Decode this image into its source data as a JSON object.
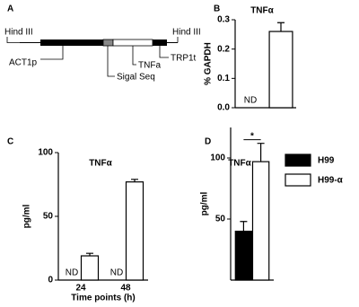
{
  "diagram": {
    "panel_label": "A",
    "labels": [
      "Hind III",
      "ACT1p",
      "Sigal Seq",
      "TNFa",
      "TRP1t",
      "Hind III"
    ]
  },
  "chart_data": [
    {
      "type": "bar",
      "panel_label": "B",
      "title": "TNFα",
      "y_label": "% GAPDH",
      "categories": [
        null,
        null
      ],
      "series": [
        {
          "color": "#ffffff",
          "values": [
            null,
            0.26
          ],
          "errors": [
            null,
            0.03
          ],
          "value_labels": [
            "ND",
            null
          ]
        }
      ],
      "ylim": [
        0,
        0.3
      ],
      "yticks": [
        {
          "value": 0,
          "label": "0.0"
        },
        {
          "value": 0.1,
          "label": "0.1"
        },
        {
          "value": 0.2,
          "label": "0.2"
        },
        {
          "value": 0.3,
          "label": "0.3"
        }
      ]
    },
    {
      "type": "bar",
      "panel_label": "C",
      "title": "TNFα",
      "y_label": "pg/ml",
      "x_label": "Time points (h)",
      "categories": [
        "24",
        "48"
      ],
      "series": [
        {
          "color": "#000000",
          "values": [
            null,
            null
          ],
          "value_labels": [
            "ND",
            "ND"
          ]
        },
        {
          "color": "#ffffff",
          "values": [
            19,
            77
          ],
          "errors": [
            2,
            2
          ]
        }
      ],
      "ylim": [
        0,
        100
      ],
      "yticks": [
        0,
        50,
        100
      ]
    },
    {
      "type": "bar",
      "panel_label": "D",
      "title": "TNFα",
      "y_label": "pg/ml",
      "categories": [
        null
      ],
      "series": [
        {
          "name": "H99",
          "color": "#000000",
          "values": [
            40
          ],
          "errors": [
            8
          ]
        },
        {
          "name": "H99-α",
          "color": "#ffffff",
          "values": [
            97
          ],
          "errors": [
            15
          ]
        }
      ],
      "ylim": [
        0,
        125
      ],
      "yticks": [
        50,
        100
      ],
      "annotations": [
        "*"
      ],
      "legend": "right"
    }
  ]
}
